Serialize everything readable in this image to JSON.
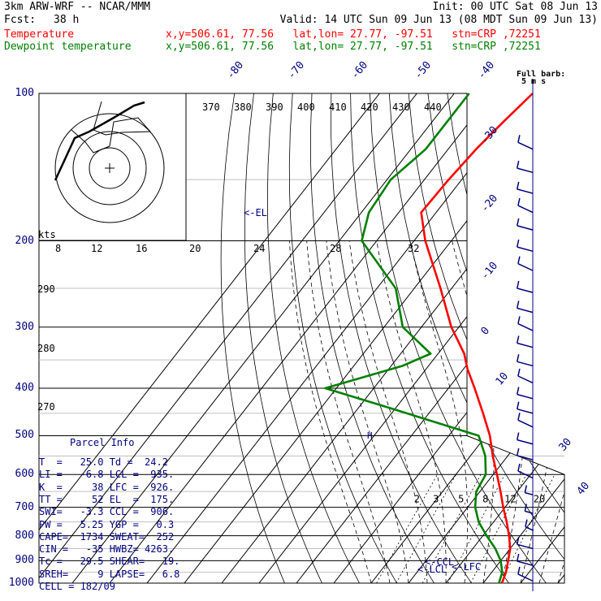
{
  "header": {
    "model": "3km ARW-WRF -- NCAR/MMM",
    "init": "Init: 00 UTC Sat 08 Jun 13",
    "fcst_label": "Fcst:",
    "fcst_value": "38 h",
    "valid": "Valid: 14 UTC Sun 09 Jun 13 (08 MDT Sun 09 Jun 13)",
    "temp_label": "Temperature",
    "temp_loc": "x,y=506.61, 77.56   lat,lon= 27.77, -97.51   stn=CRP ,72251",
    "dew_label": "Dewpoint temperature",
    "dew_loc": "x,y=506.61, 77.56   lat,lon= 27.77, -97.51   stn=CRP ,72251"
  },
  "colors": {
    "temperature": "#ff0000",
    "dewpoint": "#008000",
    "text": "#000080",
    "grid": "#000000"
  },
  "chart_data": {
    "type": "line",
    "xlabel": "",
    "ylabel": "",
    "pressure_levels": [
      100,
      200,
      300,
      400,
      500,
      600,
      700,
      800,
      900,
      1000
    ],
    "temperature_isotherm_labels": [
      "-80",
      "-70",
      "-60",
      "-50",
      "-40",
      "-30",
      "-20",
      "-10",
      "0",
      "10",
      "20",
      "30",
      "40"
    ],
    "theta_labels": [
      "370",
      "380",
      "390",
      "400",
      "410",
      "420",
      "430",
      "440"
    ],
    "mixing_ratio_labels": [
      "2",
      "3",
      "5",
      "8",
      "12",
      "20"
    ],
    "kts_label": "kts",
    "hodograph_labels": [
      "8",
      "12",
      "16",
      "20",
      "24",
      "28",
      "32"
    ],
    "hodograph_side_labels": [
      "290",
      "280",
      "270"
    ],
    "el_label": "<-EL",
    "ccl_label": "<-CCL",
    "lcl_label": "<-LCL",
    "lfc_label": "<-LFC",
    "barb_label": "Full barb:",
    "barb_unit": "5 m s",
    "series": [
      {
        "name": "Temperature",
        "points": [
          {
            "p": 100,
            "t": -69
          },
          {
            "p": 115,
            "t": -71
          },
          {
            "p": 130,
            "t": -72.5
          },
          {
            "p": 150,
            "t": -73.5
          },
          {
            "p": 175,
            "t": -74
          },
          {
            "p": 200,
            "t": -67
          },
          {
            "p": 250,
            "t": -53
          },
          {
            "p": 300,
            "t": -42
          },
          {
            "p": 340,
            "t": -33
          },
          {
            "p": 365,
            "t": -29
          },
          {
            "p": 400,
            "t": -23
          },
          {
            "p": 450,
            "t": -15.5
          },
          {
            "p": 500,
            "t": -9
          },
          {
            "p": 550,
            "t": -4
          },
          {
            "p": 600,
            "t": 1
          },
          {
            "p": 650,
            "t": 5.5
          },
          {
            "p": 700,
            "t": 9.5
          },
          {
            "p": 750,
            "t": 13.5
          },
          {
            "p": 800,
            "t": 17
          },
          {
            "p": 850,
            "t": 20
          },
          {
            "p": 900,
            "t": 22
          },
          {
            "p": 950,
            "t": 23.8
          },
          {
            "p": 1000,
            "t": 25
          }
        ]
      },
      {
        "name": "Dewpoint temperature",
        "points": [
          {
            "p": 100,
            "t": -86
          },
          {
            "p": 115,
            "t": -86
          },
          {
            "p": 130,
            "t": -86
          },
          {
            "p": 150,
            "t": -89
          },
          {
            "p": 175,
            "t": -88
          },
          {
            "p": 200,
            "t": -84
          },
          {
            "p": 250,
            "t": -65
          },
          {
            "p": 300,
            "t": -55
          },
          {
            "p": 340,
            "t": -42
          },
          {
            "p": 360,
            "t": -47
          },
          {
            "p": 400,
            "t": -63
          },
          {
            "p": 440,
            "t": -41
          },
          {
            "p": 500,
            "t": -12
          },
          {
            "p": 550,
            "t": -6
          },
          {
            "p": 600,
            "t": -2
          },
          {
            "p": 650,
            "t": -1
          },
          {
            "p": 700,
            "t": 2
          },
          {
            "p": 750,
            "t": 6
          },
          {
            "p": 800,
            "t": 11
          },
          {
            "p": 850,
            "t": 16
          },
          {
            "p": 900,
            "t": 20
          },
          {
            "p": 950,
            "t": 22.8
          },
          {
            "p": 1000,
            "t": 24.2
          }
        ]
      }
    ],
    "wind_barbs": [
      {
        "p": 150,
        "speed_ms": 10
      },
      {
        "p": 175,
        "speed_ms": 10
      },
      {
        "p": 200,
        "speed_ms": 10
      },
      {
        "p": 250,
        "speed_ms": 10
      },
      {
        "p": 300,
        "speed_ms": 10
      },
      {
        "p": 350,
        "speed_ms": 10
      },
      {
        "p": 400,
        "speed_ms": 10
      },
      {
        "p": 450,
        "speed_ms": 10
      },
      {
        "p": 500,
        "speed_ms": 10
      },
      {
        "p": 600,
        "speed_ms": 5
      },
      {
        "p": 700,
        "speed_ms": 5
      },
      {
        "p": 800,
        "speed_ms": 10
      },
      {
        "p": 900,
        "speed_ms": 10
      },
      {
        "p": 1000,
        "speed_ms": 5
      }
    ]
  },
  "parcel_info": {
    "title": "Parcel Info",
    "lines": [
      "T  =   25.0 Td =  24.2",
      "LI =   -6.8 LCL =  935.",
      "K  =     38 LFC =  926.",
      "TT =     52 EL  =  175.",
      "SWI=   -3.3 CCL =  906.",
      "PW =   5.25 YGP =   0.3",
      "CAPE=  1734 SWEAT=  252",
      "CIN =   -35 HWBZ= 4263.",
      "Tc =   29.5 SHEAR=   19.",
      "SREH=     9 LAPSE=   6.8",
      "CELL = 182/09"
    ]
  }
}
